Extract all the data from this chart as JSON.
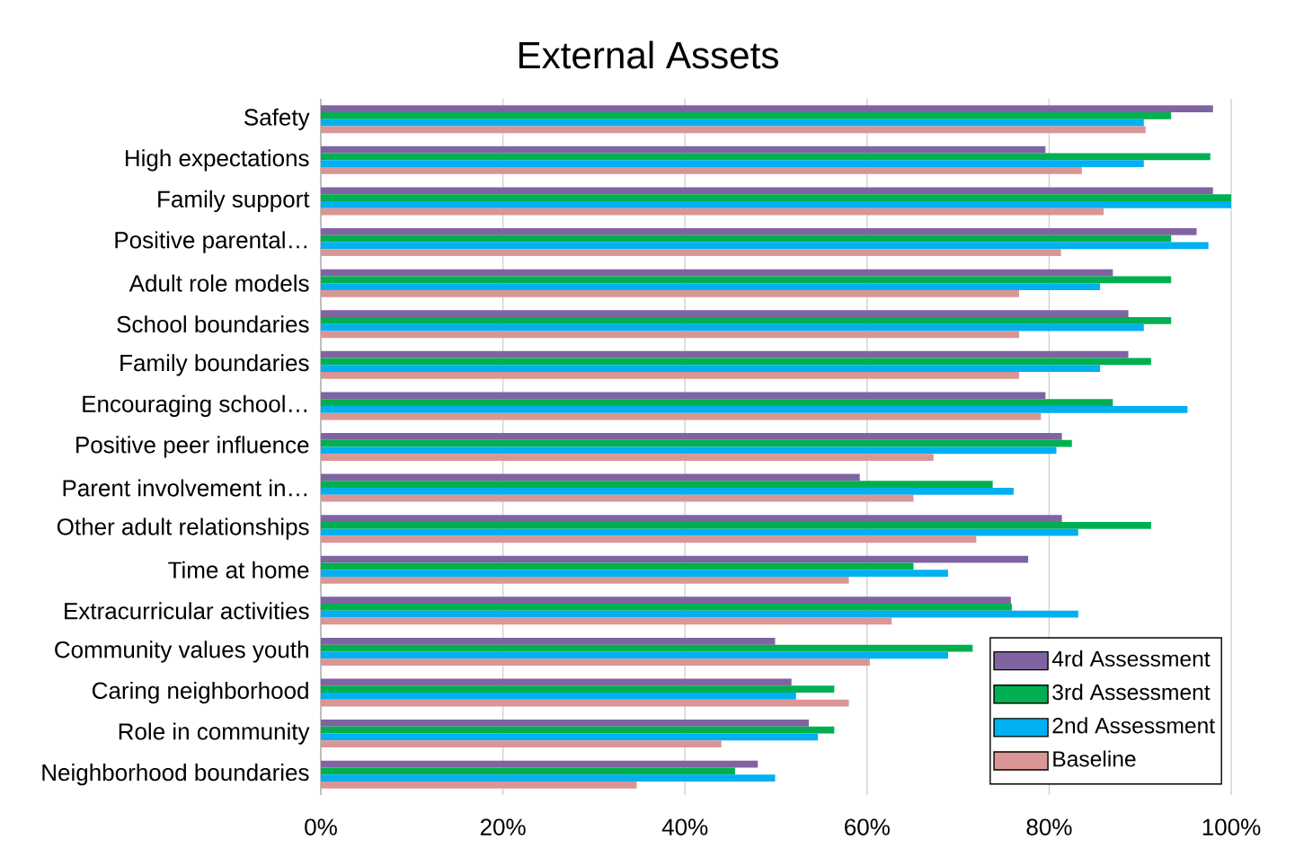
{
  "chart_data": {
    "type": "bar",
    "orientation": "horizontal",
    "title": "External Assets",
    "categories": [
      "Safety",
      "High expectations",
      "Family support",
      "Positive parental…",
      "Adult role models",
      "School boundaries",
      "Family boundaries",
      "Encouraging school…",
      "Positive peer influence",
      "Parent involvement in…",
      "Other adult relationships",
      "Time at home",
      "Extracurricular activities",
      "Community values youth",
      "Caring neighborhood",
      "Role in community",
      "Neighborhood boundaries"
    ],
    "series": [
      {
        "name": "4rd Assessment",
        "color": "#8064a2",
        "values": [
          98.0,
          79.6,
          98.0,
          96.2,
          87.0,
          88.7,
          88.7,
          79.6,
          81.4,
          59.2,
          81.4,
          77.7,
          75.8,
          49.9,
          51.7,
          53.6,
          48.0
        ]
      },
      {
        "name": "3rd Assessment",
        "color": "#00b050",
        "values": [
          93.4,
          97.7,
          100,
          93.4,
          93.4,
          93.4,
          91.2,
          87.0,
          82.5,
          73.8,
          91.2,
          65.1,
          75.9,
          71.6,
          56.4,
          56.4,
          45.5
        ]
      },
      {
        "name": "2nd Assessment",
        "color": "#00b0f0",
        "values": [
          90.4,
          90.4,
          100,
          97.5,
          85.6,
          90.4,
          85.6,
          95.2,
          80.8,
          76.1,
          83.2,
          68.9,
          83.2,
          68.9,
          52.2,
          54.6,
          49.9
        ]
      },
      {
        "name": "Baseline",
        "color": "#da9694",
        "values": [
          90.6,
          83.6,
          86.0,
          81.3,
          76.7,
          76.7,
          76.7,
          79.1,
          67.3,
          65.1,
          72.0,
          58.0,
          62.7,
          60.3,
          58.0,
          44.0,
          34.7
        ]
      }
    ],
    "xlim": [
      0,
      100
    ],
    "xticks": [
      {
        "value": 0,
        "label": "0%"
      },
      {
        "value": 20,
        "label": "20%"
      },
      {
        "value": 40,
        "label": "40%"
      },
      {
        "value": 60,
        "label": "60%"
      },
      {
        "value": 80,
        "label": "80%"
      },
      {
        "value": 100,
        "label": "100%"
      }
    ],
    "grid": "x",
    "legend": "bottom right"
  }
}
